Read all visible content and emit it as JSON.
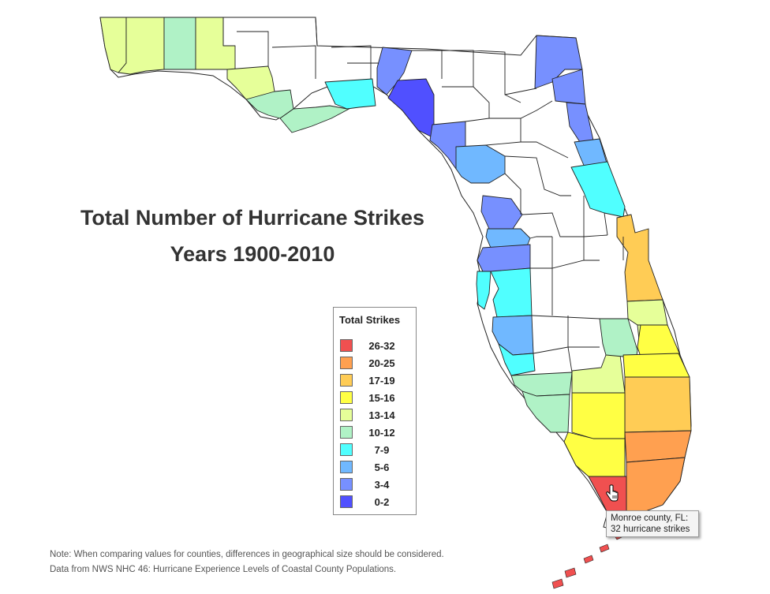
{
  "title": {
    "line1": "Total Number of Hurricane Strikes",
    "line2": "Years 1900-2010"
  },
  "legend": {
    "title": "Total Strikes",
    "items": [
      {
        "label": "26-32",
        "color": "#f05050"
      },
      {
        "label": "20-25",
        "color": "#ffa050"
      },
      {
        "label": "17-19",
        "color": "#ffcc55"
      },
      {
        "label": "15-16",
        "color": "#ffff44"
      },
      {
        "label": "13-14",
        "color": "#e6ff99"
      },
      {
        "label": "10-12",
        "color": "#b0f2c6"
      },
      {
        "label": "7-9",
        "color": "#50ffff"
      },
      {
        "label": "5-6",
        "color": "#70b8ff"
      },
      {
        "label": "3-4",
        "color": "#7790ff"
      },
      {
        "label": "0-2",
        "color": "#5050ff"
      }
    ]
  },
  "tooltip": {
    "line1": "Monroe county, FL:",
    "line2": "32 hurricane strikes"
  },
  "notes": {
    "note1": "Note: When comparing values for counties, differences in geographical size should be considered.",
    "note2": "Data from NWS NHC 46: Hurricane Experience Levels of Coastal County Populations."
  },
  "map": {
    "counties": [
      {
        "key": "escambia",
        "color": "#e6ff99"
      },
      {
        "key": "santa-rosa",
        "color": "#e6ff99"
      },
      {
        "key": "okaloosa",
        "color": "#b0f2c6"
      },
      {
        "key": "walton",
        "color": "#e6ff99"
      },
      {
        "key": "bay",
        "color": "#e6ff99"
      },
      {
        "key": "gulf",
        "color": "#b0f2c6"
      },
      {
        "key": "franklin",
        "color": "#b0f2c6"
      },
      {
        "key": "wakulla",
        "color": "#50ffff"
      },
      {
        "key": "jefferson",
        "color": "#7790ff"
      },
      {
        "key": "taylor",
        "color": "#5050ff"
      },
      {
        "key": "dixie",
        "color": "#7790ff"
      },
      {
        "key": "levy",
        "color": "#70b8ff"
      },
      {
        "key": "citrus",
        "color": "#7790ff"
      },
      {
        "key": "hernando",
        "color": "#70b8ff"
      },
      {
        "key": "pasco",
        "color": "#7790ff"
      },
      {
        "key": "pinellas",
        "color": "#50ffff"
      },
      {
        "key": "hillsborough",
        "color": "#50ffff"
      },
      {
        "key": "manatee",
        "color": "#70b8ff"
      },
      {
        "key": "sarasota",
        "color": "#50ffff"
      },
      {
        "key": "charlotte",
        "color": "#b0f2c6"
      },
      {
        "key": "lee",
        "color": "#b0f2c6"
      },
      {
        "key": "glades",
        "color": "#e6ff99"
      },
      {
        "key": "highlands",
        "color": "#b0f2c6"
      },
      {
        "key": "okeechobee",
        "color": "#ffff44"
      },
      {
        "key": "st-lucie",
        "color": "#e6ff99"
      },
      {
        "key": "nassau",
        "color": "#7790ff"
      },
      {
        "key": "duval",
        "color": "#7790ff"
      },
      {
        "key": "st-johns",
        "color": "#7790ff"
      },
      {
        "key": "flagler",
        "color": "#70b8ff"
      },
      {
        "key": "volusia",
        "color": "#50ffff"
      },
      {
        "key": "brevard",
        "color": "#ffcc55"
      },
      {
        "key": "indian-river",
        "color": "#e6ff99"
      },
      {
        "key": "martin",
        "color": "#ffff44"
      },
      {
        "key": "palm-beach",
        "color": "#ffcc55"
      },
      {
        "key": "hendry",
        "color": "#ffff44"
      },
      {
        "key": "collier",
        "color": "#ffff44"
      },
      {
        "key": "broward",
        "color": "#ffa050"
      },
      {
        "key": "miami-dade",
        "color": "#ffa050"
      },
      {
        "key": "monroe",
        "color": "#f05050"
      }
    ]
  }
}
